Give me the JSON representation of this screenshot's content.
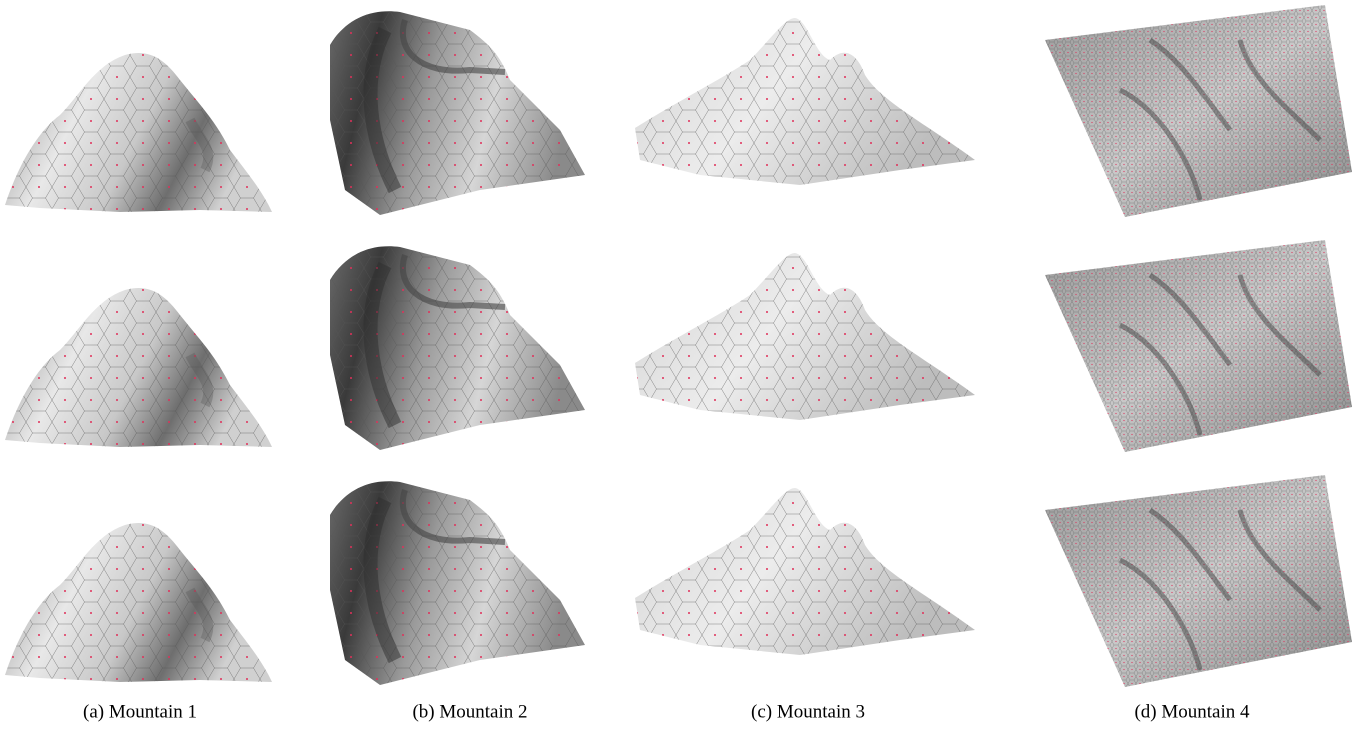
{
  "figure": {
    "panels": [
      {
        "caption": "(a) Mountain 1"
      },
      {
        "caption": "(b) Mountain 2"
      },
      {
        "caption": "(c) Mountain 3"
      },
      {
        "caption": "(d) Mountain 4"
      }
    ]
  }
}
